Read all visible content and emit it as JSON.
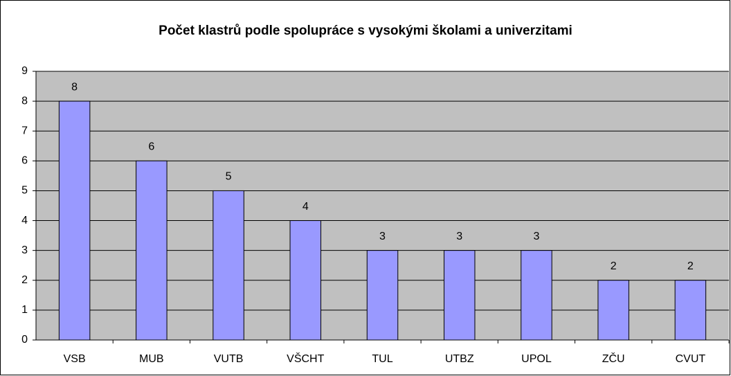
{
  "chart_data": {
    "type": "bar",
    "title": "Počet klastrů podle spolupráce s vysokými školami a univerzitami",
    "categories": [
      "VSB",
      "MUB",
      "VUTB",
      "VŠCHT",
      "TUL",
      "UTBZ",
      "UPOL",
      "ZČU",
      "CVUT"
    ],
    "values": [
      8,
      6,
      5,
      4,
      3,
      3,
      3,
      2,
      2
    ],
    "color": "#9999ff",
    "ylim": [
      0,
      9
    ],
    "yticks": [
      0,
      1,
      2,
      3,
      4,
      5,
      6,
      7,
      8,
      9
    ],
    "grid": true
  }
}
